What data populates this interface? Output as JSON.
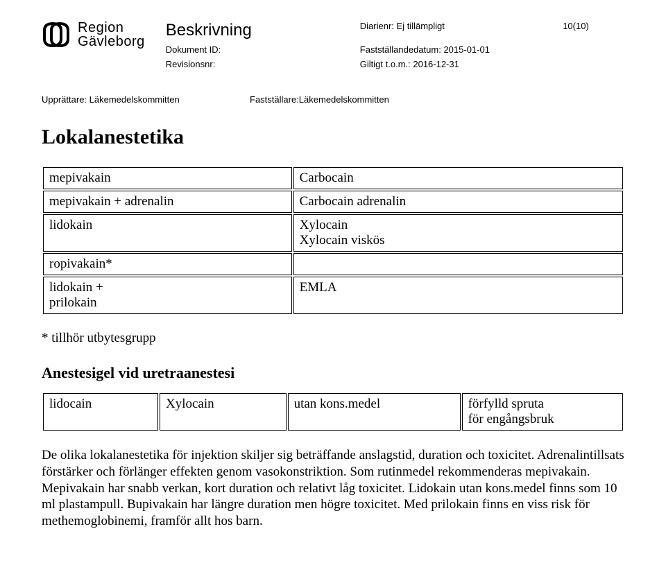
{
  "header": {
    "logo_line1": "Region",
    "logo_line2": "Gävleborg",
    "title": "Beskrivning",
    "docid_label": "Dokument ID:",
    "revision_label": "Revisionsnr:",
    "diarienr": "Diarienr: Ej tillämpligt",
    "pagenum": "10(10)",
    "faststallande": "Fastställandedatum: 2015-01-01",
    "giltigt": "Giltigt t.o.m.: 2016-12-31",
    "upprattare": "Upprättare: Läkemedelskommitten",
    "faststallare": "Fastställare:Läkemedelskommitten"
  },
  "section_title": "Lokalanestetika",
  "table1": {
    "col_widths": [
      "43%",
      "57%"
    ],
    "rows": [
      [
        "mepivakain",
        "Carbocain"
      ],
      [
        "mepivakain + adrenalin",
        "Carbocain adrenalin"
      ],
      [
        "lidokain",
        "Xylocain\nXylocain viskös"
      ],
      [
        "ropivakain*",
        ""
      ],
      [
        "lidokain +\nprilokain",
        "EMLA"
      ]
    ]
  },
  "footnote": "* tillhör utbytesgrupp",
  "subsection_title": "Anestesigel vid uretraanestesi",
  "table2": {
    "col_widths": [
      "20%",
      "22%",
      "30%",
      "28%"
    ],
    "rows": [
      [
        "lidocain",
        "Xylocain",
        "utan kons.medel",
        "förfylld spruta\nför engångsbruk"
      ]
    ]
  },
  "paragraph": "De olika lokalanestetika för injektion skiljer sig beträffande anslagstid, duration och toxicitet. Adrenalintillsats förstärker och förlänger effekten genom vasokonstriktion. Som rutinmedel rekommenderas mepivakain. Mepivakain har snabb verkan, kort duration och relativt låg toxicitet. Lidokain utan kons.medel finns som 10 ml plastampull. Bupivakain har längre duration men högre toxicitet. Med prilokain finns en viss risk för methemoglobinemi, framför allt hos barn.",
  "style": {
    "body_font": "Times New Roman",
    "header_font": "Arial",
    "body_fontsize_pt": 14,
    "header_fontsize_pt": 10,
    "title_fontsize_pt": 18,
    "section_fontsize_pt": 22,
    "subsection_fontsize_pt": 16,
    "text_color": "#000000",
    "border_color": "#000000",
    "background_color": "#ffffff",
    "logo_stroke": "#000000",
    "logo_fill": "#000000"
  }
}
